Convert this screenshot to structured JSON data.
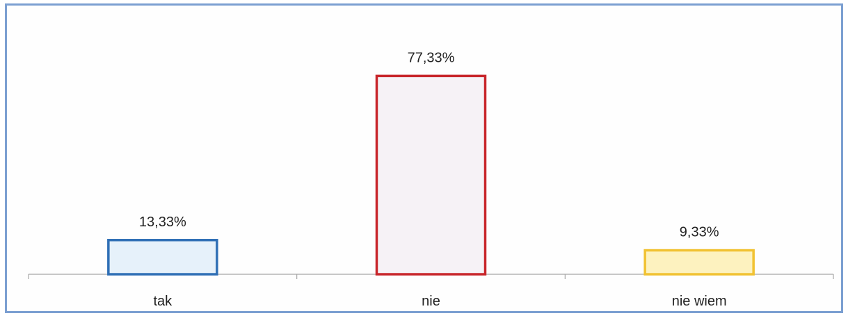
{
  "chart_data": {
    "type": "bar",
    "categories": [
      "tak",
      "nie",
      "nie wiem"
    ],
    "values": [
      13.33,
      77.33,
      9.33
    ],
    "value_labels": [
      "13,33%",
      "77,33%",
      "9,33%"
    ],
    "title": "",
    "xlabel": "",
    "ylabel": "",
    "ylim": [
      0,
      80
    ],
    "grid": false,
    "legend": "none",
    "bar_colors": [
      {
        "stroke": "#2f6fb5",
        "fill": "#e6f1fa"
      },
      {
        "stroke": "#c8262b",
        "fill": "#f6f2f6"
      },
      {
        "stroke": "#f1c232",
        "fill": "#fdf2bf"
      }
    ],
    "axis_color": "#a6a6a6"
  }
}
